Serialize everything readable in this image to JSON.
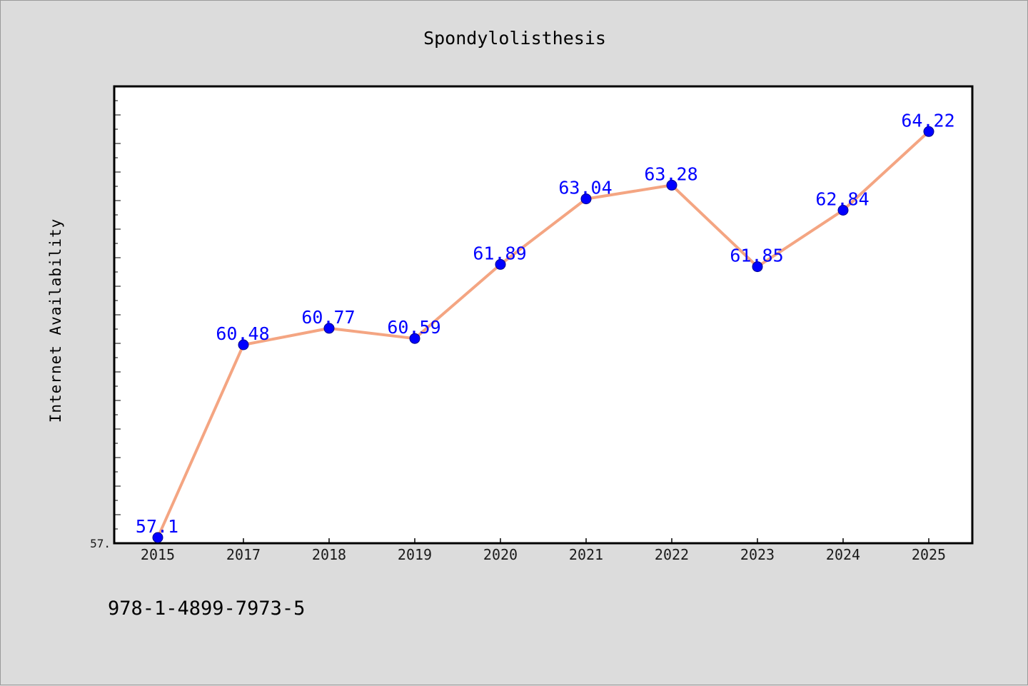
{
  "chart_data": {
    "type": "line",
    "title": "Spondylolisthesis",
    "xlabel": "",
    "ylabel": "Internet Availability",
    "categories": [
      "2015",
      "2017",
      "2018",
      "2019",
      "2020",
      "2021",
      "2022",
      "2023",
      "2024",
      "2025"
    ],
    "series": [
      {
        "values": [
          57.1,
          60.48,
          60.77,
          60.59,
          61.89,
          63.04,
          63.28,
          61.85,
          62.84,
          64.22
        ]
      }
    ],
    "data_labels": [
      "57.1",
      "60.48",
      "60.77",
      "60.59",
      "61.89",
      "63.04",
      "63.28",
      "61.85",
      "62.84",
      "64.22"
    ],
    "y_tick_labels": [
      "57."
    ],
    "ylim": [
      57.0,
      65.0
    ],
    "grid": false,
    "legend": "none"
  },
  "footer": {
    "code": "978-1-4899-7973-5"
  },
  "colors": {
    "background": "#dcdcdc",
    "plot_background": "#ffffff",
    "line": "#f4a582",
    "marker": "#0000ff",
    "marker_edge": "#00008b",
    "data_label": "#0000ff"
  }
}
